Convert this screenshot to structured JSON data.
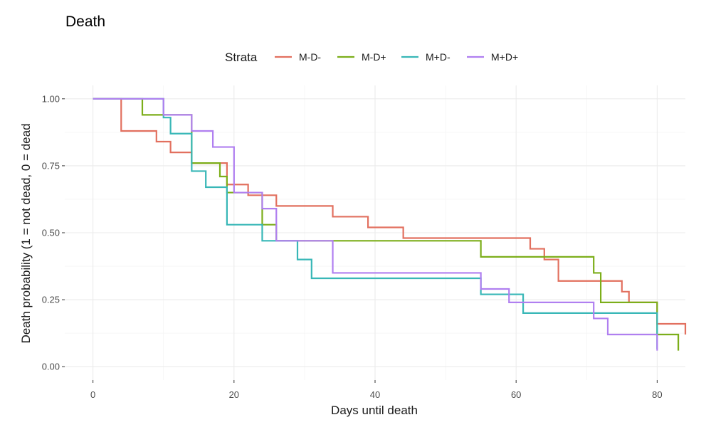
{
  "chart_data": {
    "type": "line",
    "step": true,
    "title": "Death",
    "xlabel": "Days until death",
    "ylabel": "Death probability (1 = not dead, 0 = dead",
    "xlim": [
      -4,
      84
    ],
    "ylim": [
      -0.05,
      1.05
    ],
    "x_ticks": [
      0,
      20,
      40,
      60,
      80
    ],
    "x_tick_labels": [
      "0",
      "20",
      "40",
      "60",
      "80"
    ],
    "y_ticks": [
      0,
      0.25,
      0.5,
      0.75,
      1.0
    ],
    "y_tick_labels": [
      "0.00",
      "0.25",
      "0.50",
      "0.75",
      "1.00"
    ],
    "grid": true,
    "legend": {
      "title": "Strata",
      "position": "top"
    },
    "series": [
      {
        "name": "M-D-",
        "color": "#e2705f",
        "x": [
          0,
          4,
          9,
          11,
          14,
          19,
          22,
          24,
          26,
          34,
          39,
          44,
          62,
          64,
          66,
          71,
          75,
          76,
          80,
          84
        ],
        "y": [
          1.0,
          0.88,
          0.84,
          0.8,
          0.76,
          0.68,
          0.64,
          0.64,
          0.6,
          0.56,
          0.52,
          0.48,
          0.44,
          0.4,
          0.32,
          0.32,
          0.28,
          0.24,
          0.16,
          0.12
        ]
      },
      {
        "name": "M-D+",
        "color": "#7cae1a",
        "x": [
          0,
          7,
          10,
          14,
          18,
          19,
          24,
          26,
          55,
          71,
          72,
          80,
          83
        ],
        "y": [
          1.0,
          0.94,
          0.94,
          0.76,
          0.71,
          0.65,
          0.53,
          0.47,
          0.41,
          0.35,
          0.24,
          0.12,
          0.06
        ]
      },
      {
        "name": "M+D-",
        "color": "#38b7b7",
        "x": [
          0,
          10,
          11,
          14,
          16,
          19,
          24,
          29,
          31,
          55,
          61,
          80
        ],
        "y": [
          1.0,
          0.93,
          0.87,
          0.73,
          0.67,
          0.53,
          0.47,
          0.4,
          0.33,
          0.27,
          0.2,
          0.067
        ]
      },
      {
        "name": "M+D+",
        "color": "#b07ff0",
        "x": [
          0,
          10,
          14,
          17,
          20,
          24,
          26,
          34,
          55,
          59,
          71,
          73,
          80
        ],
        "y": [
          1.0,
          0.94,
          0.88,
          0.82,
          0.65,
          0.59,
          0.47,
          0.35,
          0.29,
          0.24,
          0.18,
          0.12,
          0.06
        ]
      }
    ]
  }
}
